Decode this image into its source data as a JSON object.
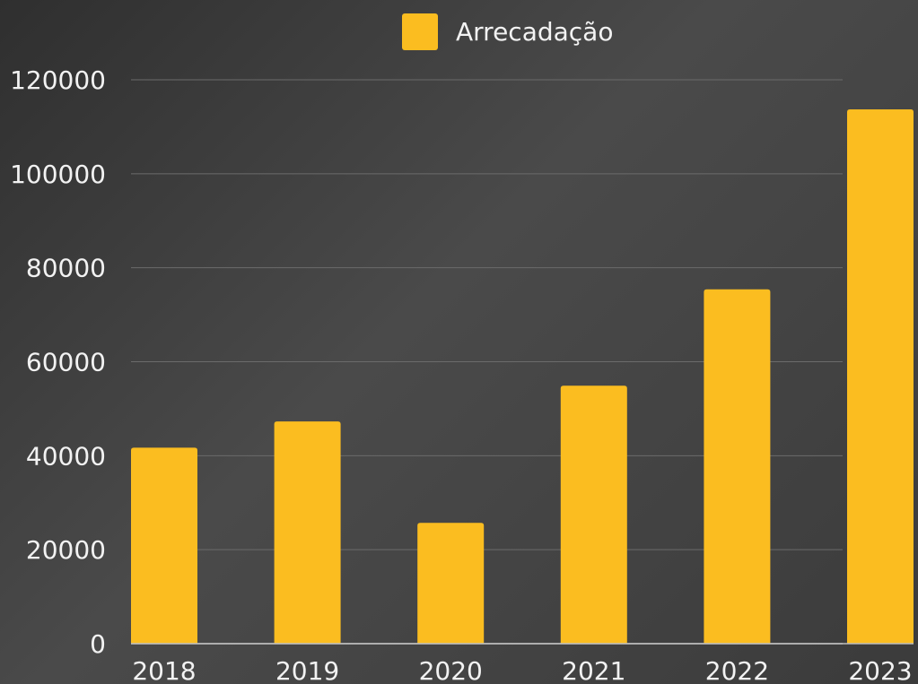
{
  "chart_data": {
    "type": "bar",
    "title": "",
    "xlabel": "",
    "ylabel": "",
    "categories": [
      "2018",
      "2019",
      "2020",
      "2021",
      "2022",
      "2023"
    ],
    "series": [
      {
        "name": "Arrecadação",
        "values": [
          41700,
          47300,
          25700,
          54900,
          75400,
          113700
        ],
        "color": "#fbbd20"
      }
    ],
    "ylim": [
      0,
      120000
    ],
    "yticks": [
      "0",
      "20000",
      "40000",
      "60000",
      "80000",
      "100000",
      "120000"
    ],
    "grid": true,
    "legend_position": "top-center"
  },
  "colors": {
    "gridline": "#6b6b6b",
    "baseline": "#bdbdbd",
    "text": "#f2f2f2"
  }
}
